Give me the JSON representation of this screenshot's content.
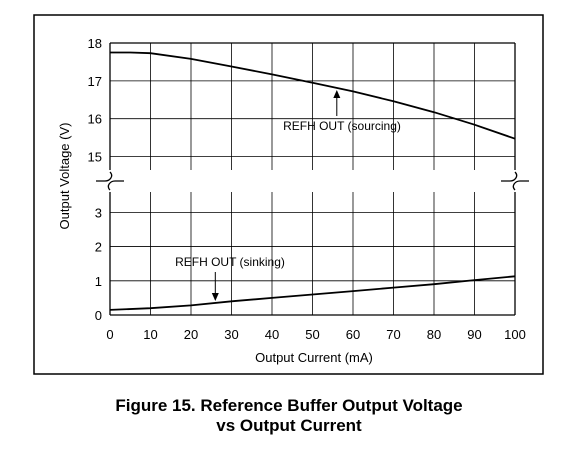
{
  "chart_data": {
    "type": "line",
    "title": "",
    "xlabel": "Output Current (mA)",
    "ylabel": "Output Voltage (V)",
    "xlim": [
      0,
      100
    ],
    "x_ticks": [
      "0",
      "10",
      "20",
      "30",
      "40",
      "50",
      "60",
      "70",
      "80",
      "90",
      "100"
    ],
    "y_upper_range": [
      14.3,
      18
    ],
    "y_lower_range": [
      0,
      3.8
    ],
    "y_upper_ticks": [
      "18",
      "17",
      "16",
      "15"
    ],
    "y_lower_ticks": [
      "3",
      "2",
      "1",
      "0"
    ],
    "axis_break": true,
    "grid": true,
    "series": [
      {
        "name": "REFH OUT (sourcing)",
        "x": [
          0,
          5,
          10,
          20,
          30,
          40,
          50,
          60,
          70,
          80,
          90,
          100
        ],
        "y": [
          17.75,
          17.75,
          17.73,
          17.58,
          17.38,
          17.17,
          16.95,
          16.72,
          16.46,
          16.17,
          15.84,
          15.47
        ]
      },
      {
        "name": "REFH OUT (sinking)",
        "x": [
          0,
          10,
          20,
          30,
          40,
          50,
          60,
          70,
          80,
          90,
          100
        ],
        "y": [
          0.15,
          0.2,
          0.28,
          0.4,
          0.5,
          0.6,
          0.7,
          0.8,
          0.9,
          1.02,
          1.13
        ]
      }
    ],
    "annotations": [
      {
        "text": "REFH OUT (sourcing)",
        "target_series": 0,
        "x": 56
      },
      {
        "text": "REFH OUT (sinking)",
        "target_series": 1,
        "x": 26
      }
    ]
  },
  "caption": {
    "line1": "Figure 15. Reference Buffer Output Voltage",
    "line2": "vs Output Current"
  }
}
